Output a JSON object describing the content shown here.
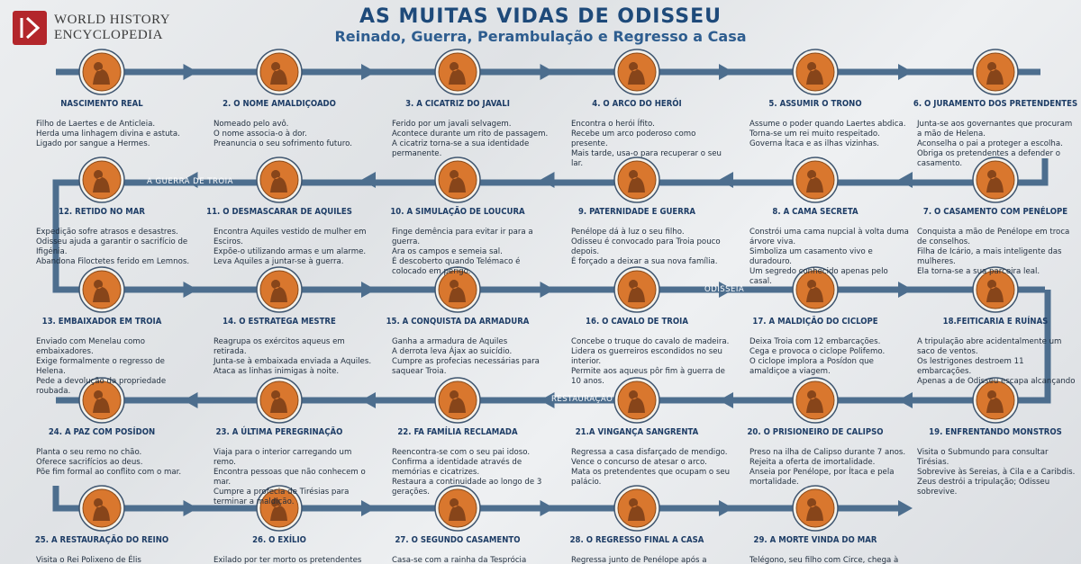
{
  "header": {
    "logo_line1": "WORLD HISTORY",
    "logo_line2": "ENCYCLOPEDIA",
    "title": "AS MUITAS VIDAS DE ODISSEU",
    "subtitle": "Reinado, Guerra, Perambulação e Regresso a Casa"
  },
  "bands": [
    {
      "label": "A GUERRA DE TROIA"
    },
    {
      "label": "ODISSEIA"
    },
    {
      "label": "RESTAURAÇÃO"
    }
  ],
  "nodes": [
    {
      "title": "NASCIMENTO REAL",
      "lines": [
        "Filho de Laertes e de Anticleia.",
        "Herda uma linhagem divina e astuta.",
        "Ligado por sangue a Hermes."
      ]
    },
    {
      "title": "2. O NOME AMALDIÇOADO",
      "lines": [
        "Nomeado pelo avô.",
        "O nome associa-o à dor.",
        "Preanuncia o seu sofrimento futuro."
      ]
    },
    {
      "title": "3. A CICATRIZ DO JAVALI",
      "lines": [
        "Ferido por um javali selvagem.",
        "Acontece durante um rito de passagem.",
        "A cicatriz torna-se a sua identidade permanente."
      ]
    },
    {
      "title": "4. O ARCO DO HERÓI",
      "lines": [
        "Encontra o herói Ífito.",
        "Recebe um arco poderoso como presente.",
        "Mais tarde, usa-o para recuperar o seu lar."
      ]
    },
    {
      "title": "5. ASSUMIR O TRONO",
      "lines": [
        "Assume o poder quando Laertes abdica.",
        "Torna-se um rei muito respeitado.",
        "Governa Ítaca e as ilhas vizinhas."
      ]
    },
    {
      "title": "6. O JURAMENTO DOS PRETENDENTES",
      "lines": [
        "Junta-se aos governantes que procuram a mão de Helena.",
        "Aconselha o pai a proteger a escolha.",
        "Obriga os pretendentes a defender o casamento."
      ]
    },
    {
      "title": "7. O CASAMENTO COM PENÉLOPE",
      "lines": [
        "Conquista a mão de Penélope em troca de conselhos.",
        "Filha de Icário, a mais inteligente das mulheres.",
        "Ela torna-se a sua parceira leal."
      ]
    },
    {
      "title": "8. A CAMA SECRETA",
      "lines": [
        "Constrói uma cama nupcial à volta duma árvore viva.",
        "Simboliza um casamento vivo e duradouro.",
        "Um segredo conhecido apenas pelo casal."
      ]
    },
    {
      "title": "9. PATERNIDADE E GUERRA",
      "lines": [
        "Penélope dá à luz o seu filho.",
        "Odisseu é convocado para Troia pouco depois.",
        "É forçado a deixar a sua nova família."
      ]
    },
    {
      "title": "10. A SIMULAÇÃO DE LOUCURA",
      "lines": [
        "Finge demência para evitar ir para a guerra.",
        "Ara os campos e semeia sal.",
        "É descoberto quando Telémaco é colocado em perigo."
      ]
    },
    {
      "title": "11. O DESMASCARAR DE AQUILES",
      "lines": [
        "Encontra Aquiles vestido de mulher em Esciros.",
        "Expõe-o utilizando armas e um alarme.",
        "Leva Aquiles a juntar-se à guerra."
      ]
    },
    {
      "title": "12. RETIDO NO MAR",
      "lines": [
        "Expedição sofre atrasos e desastres.",
        "Odisseu ajuda a garantir o sacrifício de Ifigénia.",
        "Abandona Filoctetes ferido em Lemnos."
      ]
    },
    {
      "title": "13. EMBAIXADOR EM TROIA",
      "lines": [
        "Enviado com Menelau como embaixadores.",
        "Exige formalmente o regresso de Helena.",
        "Pede a devolução da propriedade roubada."
      ]
    },
    {
      "title": "14. O ESTRATEGA MESTRE",
      "lines": [
        "Reagrupa os exércitos aqueus em retirada.",
        "Junta-se à embaixada enviada a Aquiles.",
        "Ataca as linhas inimigas à noite."
      ]
    },
    {
      "title": "15. A CONQUISTA DA ARMADURA",
      "lines": [
        "Ganha a armadura de Aquiles",
        "A derrota leva Ájax ao suicídio.",
        "Cumpre as profecias necessárias para saquear Troia."
      ]
    },
    {
      "title": "16. O CAVALO DE TROIA",
      "lines": [
        "Concebe o truque do cavalo de madeira.",
        "Lidera os guerreiros escondidos no seu interior.",
        "Permite aos aqueus pôr fim à guerra de 10 anos."
      ]
    },
    {
      "title": "17. A MALDIÇÃO DO CICLOPE",
      "lines": [
        "Deixa Troia com 12 embarcações.",
        "Cega e provoca o ciclope Polifemo.",
        "O ciclope implora a Posídon que amaldiçoe a viagem."
      ]
    },
    {
      "title": "18.FEITICARIA E RUÍNAS",
      "lines": [
        "A tripulação abre acidentalmente um saco de ventos.",
        "Os lestrigones destroem 11 embarcações.",
        "Apenas a de Odisseu escapa alcançando"
      ]
    },
    {
      "title": "19. ENFRENTANDO MONSTROS",
      "lines": [
        "Visita o Submundo para consultar Tirésias.",
        "Sobrevive às Sereias, à Cila e a Caribdis.",
        "Zeus destrói a tripulação; Odisseu sobrevive."
      ]
    },
    {
      "title": "20. O PRISIONEIRO DE CALIPSO",
      "lines": [
        "Preso na ilha de Calipso durante 7 anos.",
        "Rejeita a oferta de imortalidade.",
        "Anseia por Penélope, por Ítaca e pela mortalidade."
      ]
    },
    {
      "title": "21.A VINGANÇA SANGRENTA",
      "lines": [
        "Regressa a casa disfarçado de mendigo.",
        "Vence o concurso de atesar o arco.",
        "Mata os pretendentes que ocupam o seu palácio."
      ]
    },
    {
      "title": "22. FA FAMÍLIA RECLAMADA",
      "lines": [
        "Reencontra-se com o seu pai idoso.",
        "Confirma a identidade através de memórias e cicatrizes.",
        "Restaura a continuidade ao longo de 3 gerações."
      ]
    },
    {
      "title": "23. A ÚLTIMA PEREGRINAÇÃO",
      "lines": [
        "Viaja para o interior carregando um remo.",
        "Encontra pessoas que não conhecem o mar.",
        "Cumpre a profecia de Tirésias para terminar a maldição."
      ]
    },
    {
      "title": "24. A PAZ COM POSÍDON",
      "lines": [
        "Planta o seu remo no chão.",
        "Oferece sacrifícios ao deus.",
        "Põe fim formal ao conflito com o mar."
      ]
    },
    {
      "title": "25. A RESTAURAÇÃO DO REINO",
      "lines": [
        "Visita o Rei Polixeno de Élis"
      ]
    },
    {
      "title": "26. O EXÍLIO",
      "lines": [
        "Exilado por ter morto os pretendentes"
      ]
    },
    {
      "title": "27. O SEGUNDO CASAMENTO",
      "lines": [
        "Casa-se com a rainha da Tesprócia"
      ]
    },
    {
      "title": "28. O REGRESSO FINAL A CASA",
      "lines": [
        "Regressa junto de Penélope após a morte de"
      ]
    },
    {
      "title": "29. A MORTE VINDA DO MAR",
      "lines": [
        "Telégono, seu filho com Circe, chega à ilha."
      ]
    }
  ]
}
